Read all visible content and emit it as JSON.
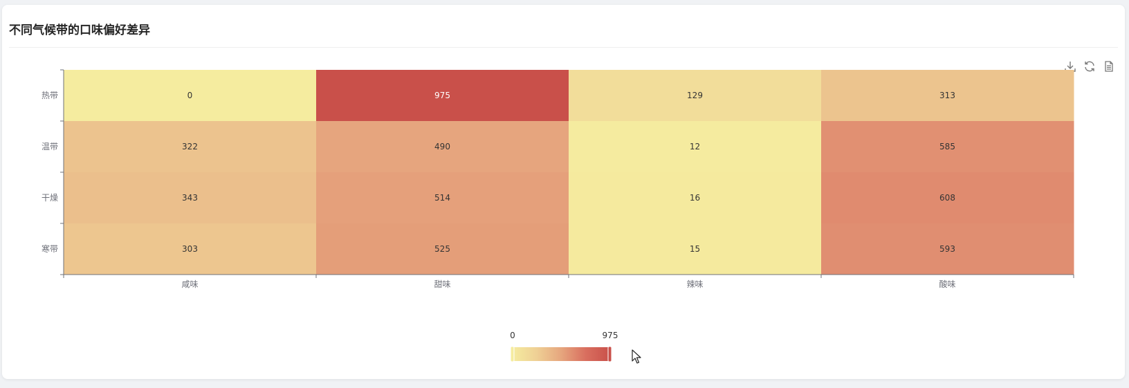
{
  "card": {
    "title": "不同气候带的口味偏好差异"
  },
  "toolbox": {
    "icons": [
      "download-icon",
      "refresh-icon",
      "data-view-icon"
    ]
  },
  "chart_data": {
    "type": "heatmap",
    "title": "不同气候带的口味偏好差异",
    "x_categories": [
      "咸味",
      "甜味",
      "辣味",
      "酸味"
    ],
    "y_categories": [
      "热带",
      "温带",
      "干燥",
      "寒带"
    ],
    "values": [
      [
        0,
        975,
        129,
        313
      ],
      [
        322,
        490,
        12,
        585
      ],
      [
        343,
        514,
        16,
        608
      ],
      [
        303,
        525,
        15,
        593
      ]
    ],
    "visual_map": {
      "min": 0,
      "max": 975,
      "min_label": "0",
      "max_label": "975",
      "colors": [
        "#f5ec9f",
        "#efd095",
        "#e6a67e",
        "#d96f5f",
        "#c9504a"
      ]
    },
    "grid": false,
    "legend": "bottom-center"
  }
}
